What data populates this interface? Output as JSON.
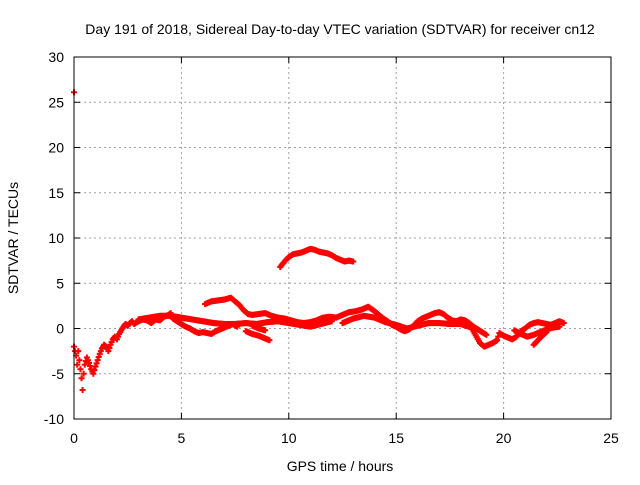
{
  "chart_data": {
    "type": "scatter",
    "title": "Day 191 of 2018, Sidereal Day-to-day VTEC variation (SDTVAR) for receiver cn12",
    "xlabel": "GPS time / hours",
    "ylabel": "SDTVAR / TECUs",
    "xlim": [
      0,
      25
    ],
    "ylim": [
      -10,
      30
    ],
    "xticks": [
      0,
      5,
      10,
      15,
      20,
      25
    ],
    "yticks": [
      -10,
      -5,
      0,
      5,
      10,
      15,
      20,
      25,
      30
    ],
    "grid": true,
    "marker": "+",
    "series": [
      {
        "name": "cn12",
        "color": "#ff0000",
        "points": [
          [
            0.0,
            26.1
          ],
          [
            0.0,
            -2.0
          ],
          [
            0.1,
            -3.0
          ],
          [
            0.15,
            -4.0
          ],
          [
            0.2,
            -2.5
          ],
          [
            0.25,
            -3.5
          ],
          [
            0.3,
            -4.5
          ],
          [
            0.35,
            -5.5
          ],
          [
            0.4,
            -6.8
          ],
          [
            0.45,
            -5.0
          ],
          [
            0.5,
            -4.0
          ],
          [
            0.6,
            -3.2
          ],
          [
            0.7,
            -3.8
          ],
          [
            0.8,
            -4.5
          ],
          [
            0.9,
            -5.0
          ],
          [
            1.0,
            -4.2
          ],
          [
            1.1,
            -3.5
          ],
          [
            1.2,
            -2.8
          ],
          [
            1.3,
            -2.2
          ],
          [
            1.4,
            -1.8
          ],
          [
            1.5,
            -2.0
          ],
          [
            1.6,
            -2.5
          ],
          [
            1.7,
            -1.8
          ],
          [
            1.8,
            -1.2
          ],
          [
            1.9,
            -0.9
          ],
          [
            2.0,
            -1.2
          ],
          [
            2.1,
            -0.6
          ],
          [
            2.2,
            -0.2
          ],
          [
            2.3,
            0.2
          ],
          [
            2.4,
            0.5
          ],
          [
            2.5,
            0.3
          ],
          [
            2.6,
            0.6
          ],
          [
            2.7,
            0.8
          ],
          [
            2.8,
            0.5
          ],
          [
            3.0,
            0.8
          ],
          [
            3.2,
            1.0
          ],
          [
            3.4,
            0.9
          ],
          [
            3.6,
            0.6
          ],
          [
            3.8,
            1.0
          ],
          [
            4.0,
            0.9
          ],
          [
            4.2,
            1.3
          ],
          [
            4.4,
            1.5
          ],
          [
            4.5,
            1.7
          ],
          [
            4.6,
            1.1
          ],
          [
            4.8,
            0.8
          ],
          [
            5.0,
            0.5
          ],
          [
            5.2,
            0.2
          ],
          [
            5.4,
            0.0
          ],
          [
            5.6,
            -0.3
          ],
          [
            5.8,
            -0.5
          ],
          [
            6.0,
            -0.4
          ],
          [
            6.2,
            -0.5
          ],
          [
            6.4,
            -0.6
          ],
          [
            6.6,
            -0.3
          ],
          [
            6.8,
            -0.1
          ],
          [
            7.0,
            0.1
          ],
          [
            7.2,
            0.3
          ],
          [
            7.4,
            0.5
          ],
          [
            7.6,
            0.2
          ],
          [
            3.0,
            1.0
          ],
          [
            3.5,
            1.2
          ],
          [
            4.0,
            1.4
          ],
          [
            4.5,
            1.4
          ],
          [
            5.0,
            1.2
          ],
          [
            5.5,
            1.0
          ],
          [
            6.0,
            0.8
          ],
          [
            6.5,
            0.6
          ],
          [
            7.0,
            0.5
          ],
          [
            7.5,
            0.5
          ],
          [
            8.0,
            0.6
          ],
          [
            8.5,
            0.5
          ],
          [
            9.0,
            0.7
          ],
          [
            9.5,
            0.8
          ],
          [
            10.0,
            0.6
          ],
          [
            10.5,
            0.4
          ],
          [
            11.0,
            0.2
          ],
          [
            11.5,
            0.5
          ],
          [
            12.0,
            0.8
          ],
          [
            8.0,
            -0.3
          ],
          [
            8.3,
            -0.6
          ],
          [
            8.6,
            -0.8
          ],
          [
            8.9,
            -1.1
          ],
          [
            9.1,
            -1.3
          ],
          [
            8.3,
            0.3
          ],
          [
            8.6,
            0.0
          ],
          [
            8.9,
            -0.2
          ],
          [
            6.1,
            2.7
          ],
          [
            6.4,
            3.0
          ],
          [
            6.7,
            3.1
          ],
          [
            7.0,
            3.2
          ],
          [
            7.3,
            3.4
          ],
          [
            7.5,
            3.0
          ],
          [
            7.7,
            2.6
          ],
          [
            7.9,
            2.0
          ],
          [
            8.1,
            1.6
          ],
          [
            8.3,
            1.5
          ],
          [
            8.6,
            1.6
          ],
          [
            8.9,
            1.7
          ],
          [
            9.2,
            1.4
          ],
          [
            9.5,
            1.2
          ],
          [
            9.8,
            1.1
          ],
          [
            10.1,
            0.9
          ],
          [
            10.4,
            0.7
          ],
          [
            10.7,
            0.6
          ],
          [
            11.0,
            0.7
          ],
          [
            11.3,
            0.9
          ],
          [
            11.6,
            1.2
          ],
          [
            11.9,
            1.3
          ],
          [
            12.2,
            1.2
          ],
          [
            12.5,
            1.5
          ],
          [
            12.8,
            1.8
          ],
          [
            13.1,
            1.9
          ],
          [
            13.4,
            2.1
          ],
          [
            13.7,
            2.4
          ],
          [
            14.0,
            1.9
          ],
          [
            14.2,
            1.5
          ],
          [
            14.4,
            1.1
          ],
          [
            14.6,
            0.8
          ],
          [
            14.8,
            0.4
          ],
          [
            15.0,
            0.2
          ],
          [
            15.2,
            -0.1
          ],
          [
            15.4,
            -0.3
          ],
          [
            15.6,
            -0.1
          ],
          [
            15.8,
            0.3
          ],
          [
            16.0,
            0.8
          ],
          [
            16.2,
            1.1
          ],
          [
            16.4,
            1.3
          ],
          [
            16.6,
            1.5
          ],
          [
            16.8,
            1.7
          ],
          [
            17.0,
            1.8
          ],
          [
            17.2,
            1.6
          ],
          [
            17.4,
            1.2
          ],
          [
            17.6,
            0.9
          ],
          [
            17.8,
            0.8
          ],
          [
            18.0,
            1.0
          ],
          [
            18.2,
            0.9
          ],
          [
            18.4,
            0.6
          ],
          [
            18.6,
            0.2
          ],
          [
            18.8,
            -0.1
          ],
          [
            19.0,
            -0.4
          ],
          [
            19.2,
            -0.7
          ],
          [
            12.5,
            0.6
          ],
          [
            13.0,
            1.1
          ],
          [
            13.5,
            1.4
          ],
          [
            14.0,
            1.2
          ],
          [
            14.5,
            0.7
          ],
          [
            15.0,
            0.4
          ],
          [
            15.5,
            0.0
          ],
          [
            16.0,
            0.3
          ],
          [
            16.5,
            0.6
          ],
          [
            17.0,
            0.6
          ],
          [
            17.5,
            0.5
          ],
          [
            18.0,
            0.5
          ],
          [
            18.5,
            0.1
          ],
          [
            18.9,
            -1.6
          ],
          [
            19.1,
            -2.0
          ],
          [
            19.3,
            -1.8
          ],
          [
            19.5,
            -1.6
          ],
          [
            19.7,
            -1.3
          ],
          [
            19.8,
            -0.5
          ],
          [
            20.0,
            -0.8
          ],
          [
            20.2,
            -1.0
          ],
          [
            20.4,
            -1.2
          ],
          [
            20.6,
            -0.9
          ],
          [
            20.8,
            -0.3
          ],
          [
            21.0,
            0.0
          ],
          [
            21.2,
            0.4
          ],
          [
            21.4,
            0.6
          ],
          [
            21.6,
            0.7
          ],
          [
            21.8,
            0.6
          ],
          [
            22.0,
            0.5
          ],
          [
            22.2,
            0.4
          ],
          [
            22.4,
            0.6
          ],
          [
            22.6,
            0.8
          ],
          [
            22.8,
            0.6
          ],
          [
            20.5,
            -0.2
          ],
          [
            20.8,
            -0.6
          ],
          [
            21.1,
            -0.9
          ],
          [
            21.4,
            -0.7
          ],
          [
            21.7,
            -0.4
          ],
          [
            22.0,
            -0.1
          ],
          [
            22.3,
            0.1
          ],
          [
            22.6,
            0.2
          ],
          [
            21.4,
            -1.8
          ],
          [
            21.6,
            -1.3
          ],
          [
            21.8,
            -0.8
          ],
          [
            22.0,
            -0.4
          ],
          [
            9.6,
            6.8
          ],
          [
            9.8,
            7.4
          ],
          [
            10.0,
            7.9
          ],
          [
            10.2,
            8.2
          ],
          [
            10.4,
            8.3
          ],
          [
            10.6,
            8.4
          ],
          [
            10.8,
            8.6
          ],
          [
            11.0,
            8.8
          ],
          [
            11.2,
            8.7
          ],
          [
            11.4,
            8.5
          ],
          [
            11.6,
            8.4
          ],
          [
            11.8,
            8.3
          ],
          [
            12.0,
            8.1
          ],
          [
            12.2,
            7.8
          ],
          [
            12.4,
            7.6
          ],
          [
            12.6,
            7.4
          ],
          [
            12.8,
            7.5
          ],
          [
            13.0,
            7.4
          ]
        ]
      }
    ]
  }
}
